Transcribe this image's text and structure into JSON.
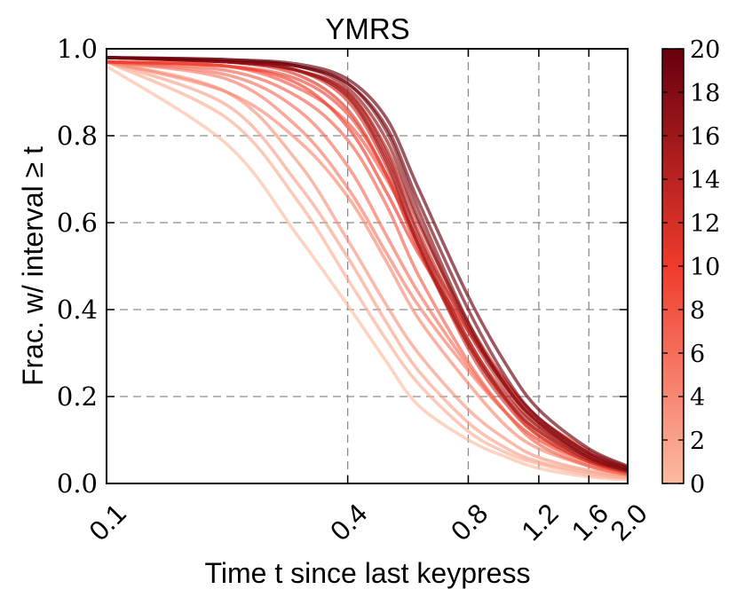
{
  "chart_data": {
    "type": "line",
    "title": "YMRS",
    "xlabel": "Time t since last keypress",
    "ylabel": "Frac. w/ interval ≥ t",
    "x_scale": "log",
    "xlim": [
      0.1,
      2.0
    ],
    "ylim": [
      0.0,
      1.0
    ],
    "x_ticks": [
      0.1,
      0.4,
      0.8,
      1.2,
      1.6,
      2.0
    ],
    "x_tick_labels": [
      "0.1",
      "0.4",
      "0.8",
      "1.2",
      "1.6",
      "2.0"
    ],
    "y_ticks": [
      0.0,
      0.2,
      0.4,
      0.6,
      0.8,
      1.0
    ],
    "y_tick_labels": [
      "0.0",
      "0.2",
      "0.4",
      "0.6",
      "0.8",
      "1.0"
    ],
    "grid": true,
    "colorbar": {
      "range": [
        0,
        20
      ],
      "ticks": [
        0,
        2,
        4,
        6,
        8,
        10,
        12,
        14,
        16,
        18,
        20
      ],
      "tick_labels": [
        "0",
        "2",
        "4",
        "6",
        "8",
        "10",
        "12",
        "14",
        "16",
        "18",
        "20"
      ],
      "color_low": "#fcbba1",
      "color_mid": "#ef3b2c",
      "color_high": "#67000d"
    },
    "series": [
      {
        "ymrs": 0,
        "x": [
          0.1,
          0.2,
          0.3,
          0.4,
          0.5,
          0.6,
          0.8,
          1.0,
          1.2,
          1.6,
          2.0
        ],
        "y": [
          0.96,
          0.78,
          0.57,
          0.41,
          0.28,
          0.18,
          0.1,
          0.06,
          0.035,
          0.015,
          0.008
        ]
      },
      {
        "ymrs": 1,
        "x": [
          0.1,
          0.2,
          0.3,
          0.4,
          0.5,
          0.6,
          0.8,
          1.0,
          1.2,
          1.6,
          2.0
        ],
        "y": [
          0.97,
          0.84,
          0.65,
          0.47,
          0.33,
          0.23,
          0.12,
          0.07,
          0.045,
          0.02,
          0.012
        ]
      },
      {
        "ymrs": 2,
        "x": [
          0.1,
          0.2,
          0.3,
          0.4,
          0.5,
          0.6,
          0.8,
          1.0,
          1.2,
          1.6,
          2.0
        ],
        "y": [
          0.97,
          0.87,
          0.69,
          0.52,
          0.37,
          0.26,
          0.14,
          0.08,
          0.05,
          0.025,
          0.014
        ]
      },
      {
        "ymrs": 3,
        "x": [
          0.1,
          0.2,
          0.3,
          0.4,
          0.5,
          0.6,
          0.8,
          1.0,
          1.2,
          1.6,
          2.0
        ],
        "y": [
          0.97,
          0.9,
          0.74,
          0.56,
          0.41,
          0.3,
          0.17,
          0.1,
          0.06,
          0.03,
          0.018
        ]
      },
      {
        "ymrs": 4,
        "x": [
          0.1,
          0.2,
          0.3,
          0.4,
          0.5,
          0.6,
          0.8,
          1.0,
          1.2,
          1.6,
          2.0
        ],
        "y": [
          0.97,
          0.9,
          0.79,
          0.66,
          0.51,
          0.38,
          0.23,
          0.13,
          0.08,
          0.04,
          0.02
        ]
      },
      {
        "ymrs": 5,
        "x": [
          0.1,
          0.2,
          0.3,
          0.4,
          0.5,
          0.6,
          0.8,
          1.0,
          1.2,
          1.6,
          2.0
        ],
        "y": [
          0.97,
          0.93,
          0.82,
          0.68,
          0.53,
          0.41,
          0.26,
          0.16,
          0.1,
          0.05,
          0.025
        ]
      },
      {
        "ymrs": 6,
        "x": [
          0.1,
          0.2,
          0.3,
          0.4,
          0.5,
          0.6,
          0.8,
          1.0,
          1.2,
          1.6,
          2.0
        ],
        "y": [
          0.97,
          0.94,
          0.86,
          0.73,
          0.57,
          0.44,
          0.27,
          0.16,
          0.1,
          0.045,
          0.022
        ]
      },
      {
        "ymrs": 7,
        "x": [
          0.1,
          0.2,
          0.3,
          0.4,
          0.5,
          0.6,
          0.8,
          1.0,
          1.2,
          1.6,
          2.0
        ],
        "y": [
          0.97,
          0.95,
          0.89,
          0.79,
          0.64,
          0.48,
          0.28,
          0.16,
          0.09,
          0.04,
          0.02
        ]
      },
      {
        "ymrs": 8,
        "x": [
          0.1,
          0.2,
          0.3,
          0.4,
          0.5,
          0.6,
          0.8,
          1.0,
          1.2,
          1.6,
          2.0
        ],
        "y": [
          0.97,
          0.96,
          0.91,
          0.83,
          0.7,
          0.56,
          0.36,
          0.22,
          0.14,
          0.065,
          0.032
        ]
      },
      {
        "ymrs": 9,
        "x": [
          0.1,
          0.2,
          0.3,
          0.4,
          0.5,
          0.6,
          0.8,
          1.0,
          1.2,
          1.6,
          2.0
        ],
        "y": [
          0.97,
          0.96,
          0.93,
          0.85,
          0.71,
          0.55,
          0.33,
          0.19,
          0.11,
          0.05,
          0.025
        ]
      },
      {
        "ymrs": 10,
        "x": [
          0.1,
          0.2,
          0.3,
          0.4,
          0.5,
          0.6,
          0.8,
          1.0,
          1.2,
          1.6,
          2.0
        ],
        "y": [
          0.97,
          0.96,
          0.92,
          0.82,
          0.67,
          0.53,
          0.35,
          0.23,
          0.15,
          0.075,
          0.038
        ]
      },
      {
        "ymrs": 11,
        "x": [
          0.1,
          0.2,
          0.3,
          0.4,
          0.5,
          0.6,
          0.8,
          1.0,
          1.2,
          1.6,
          2.0
        ],
        "y": [
          0.98,
          0.97,
          0.94,
          0.86,
          0.71,
          0.54,
          0.32,
          0.19,
          0.12,
          0.055,
          0.03
        ]
      },
      {
        "ymrs": 12,
        "x": [
          0.1,
          0.2,
          0.3,
          0.4,
          0.5,
          0.6,
          0.8,
          1.0,
          1.2,
          1.6,
          2.0
        ],
        "y": [
          0.98,
          0.97,
          0.95,
          0.88,
          0.73,
          0.55,
          0.31,
          0.18,
          0.11,
          0.05,
          0.025
        ]
      },
      {
        "ymrs": 13,
        "x": [
          0.1,
          0.2,
          0.3,
          0.4,
          0.5,
          0.6,
          0.8,
          1.0,
          1.2,
          1.6,
          2.0
        ],
        "y": [
          0.98,
          0.97,
          0.95,
          0.89,
          0.75,
          0.58,
          0.35,
          0.21,
          0.13,
          0.06,
          0.03
        ]
      },
      {
        "ymrs": 14,
        "x": [
          0.1,
          0.2,
          0.3,
          0.4,
          0.5,
          0.6,
          0.8,
          1.0,
          1.2,
          1.6,
          2.0
        ],
        "y": [
          0.98,
          0.97,
          0.95,
          0.9,
          0.77,
          0.6,
          0.37,
          0.23,
          0.15,
          0.07,
          0.035
        ]
      },
      {
        "ymrs": 15,
        "x": [
          0.1,
          0.2,
          0.3,
          0.4,
          0.5,
          0.6,
          0.8,
          1.0,
          1.2,
          1.6,
          2.0
        ],
        "y": [
          0.98,
          0.97,
          0.95,
          0.9,
          0.76,
          0.57,
          0.33,
          0.2,
          0.13,
          0.06,
          0.03
        ]
      },
      {
        "ymrs": 16,
        "x": [
          0.1,
          0.2,
          0.3,
          0.4,
          0.5,
          0.6,
          0.8,
          1.0,
          1.2,
          1.6,
          2.0
        ],
        "y": [
          0.98,
          0.97,
          0.95,
          0.89,
          0.74,
          0.55,
          0.32,
          0.19,
          0.12,
          0.055,
          0.028
        ]
      },
      {
        "ymrs": 17,
        "x": [
          0.1,
          0.2,
          0.3,
          0.4,
          0.5,
          0.6,
          0.8,
          1.0,
          1.2,
          1.6,
          2.0
        ],
        "y": [
          0.98,
          0.97,
          0.96,
          0.91,
          0.79,
          0.61,
          0.36,
          0.22,
          0.14,
          0.065,
          0.032
        ]
      },
      {
        "ymrs": 18,
        "x": [
          0.1,
          0.2,
          0.3,
          0.4,
          0.5,
          0.6,
          0.8,
          1.0,
          1.2,
          1.6,
          2.0
        ],
        "y": [
          0.98,
          0.97,
          0.96,
          0.92,
          0.81,
          0.63,
          0.37,
          0.22,
          0.14,
          0.06,
          0.03
        ]
      },
      {
        "ymrs": 19,
        "x": [
          0.1,
          0.2,
          0.3,
          0.4,
          0.5,
          0.6,
          0.8,
          1.0,
          1.2,
          1.6,
          2.0
        ],
        "y": [
          0.98,
          0.975,
          0.96,
          0.92,
          0.82,
          0.65,
          0.4,
          0.24,
          0.15,
          0.07,
          0.035
        ]
      },
      {
        "ymrs": 20,
        "x": [
          0.1,
          0.2,
          0.3,
          0.4,
          0.5,
          0.6,
          0.8,
          1.0,
          1.2,
          1.6,
          2.0
        ],
        "y": [
          0.98,
          0.975,
          0.965,
          0.93,
          0.84,
          0.68,
          0.43,
          0.27,
          0.17,
          0.08,
          0.04
        ]
      }
    ]
  }
}
